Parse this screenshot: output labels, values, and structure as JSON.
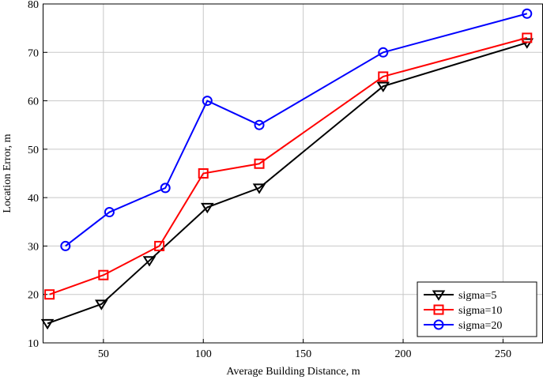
{
  "chart_data": {
    "type": "line",
    "title": "",
    "xlabel": "Average Building Distance, m",
    "ylabel": "Location Error, m",
    "xlim": [
      20,
      270
    ],
    "ylim": [
      10,
      80
    ],
    "xticks": [
      50,
      100,
      150,
      200,
      250
    ],
    "yticks": [
      10,
      20,
      30,
      40,
      50,
      60,
      70,
      80
    ],
    "grid": true,
    "legend_position": "bottom-right",
    "series": [
      {
        "name": "sigma=5",
        "color": "#000000",
        "marker": "triangle-down",
        "x": [
          22,
          49,
          73,
          102,
          128,
          190,
          262
        ],
        "y": [
          14,
          18,
          27,
          38,
          42,
          63,
          72
        ]
      },
      {
        "name": "sigma=10",
        "color": "#ff0000",
        "marker": "square",
        "x": [
          23,
          50,
          78,
          100,
          128,
          190,
          262
        ],
        "y": [
          20,
          24,
          30,
          45,
          47,
          65,
          73
        ]
      },
      {
        "name": "sigma=20",
        "color": "#0000ff",
        "marker": "circle",
        "x": [
          31,
          53,
          81,
          102,
          128,
          190,
          262
        ],
        "y": [
          30,
          37,
          42,
          60,
          55,
          70,
          78
        ]
      }
    ]
  }
}
